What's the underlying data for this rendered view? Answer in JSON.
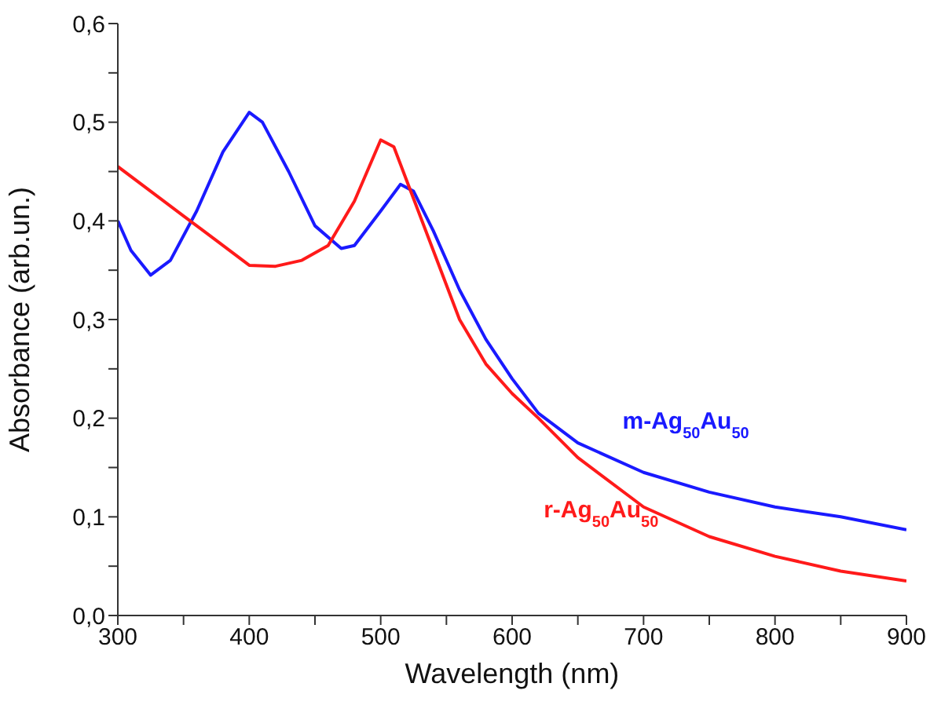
{
  "chart_data": {
    "type": "line",
    "xlabel": "Wavelength (nm)",
    "ylabel": "Absorbance (arb.un.)",
    "xlim": [
      300,
      900
    ],
    "ylim": [
      0,
      0.6
    ],
    "xticks": [
      300,
      {
        "value": 350,
        "label": null
      },
      400,
      {
        "value": 450,
        "label": null
      },
      500,
      {
        "value": 550,
        "label": null
      },
      600,
      {
        "value": 650,
        "label": null
      },
      700,
      {
        "value": 750,
        "label": null
      },
      800,
      {
        "value": 850,
        "label": null
      },
      900
    ],
    "yticks": [
      {
        "value": 0,
        "label": "0,0"
      },
      {
        "value": 0.05,
        "label": null
      },
      {
        "value": 0.1,
        "label": "0,1"
      },
      {
        "value": 0.15,
        "label": null
      },
      {
        "value": 0.2,
        "label": "0,2"
      },
      {
        "value": 0.25,
        "label": null
      },
      {
        "value": 0.3,
        "label": "0,3"
      },
      {
        "value": 0.35,
        "label": null
      },
      {
        "value": 0.4,
        "label": "0,4"
      },
      {
        "value": 0.45,
        "label": null
      },
      {
        "value": 0.5,
        "label": "0,5"
      },
      {
        "value": 0.55,
        "label": null
      },
      {
        "value": 0.6,
        "label": "0,6"
      }
    ],
    "grid": false,
    "legend": false,
    "marker": "none",
    "line_style": "solid",
    "series": [
      {
        "name": "m-Ag$_{50}$Au$_{50}$",
        "color": "#1a1aff",
        "x": [
          300,
          310,
          325,
          340,
          360,
          380,
          400,
          410,
          430,
          450,
          470,
          480,
          500,
          515,
          525,
          540,
          560,
          580,
          600,
          620,
          650,
          700,
          750,
          800,
          850,
          900
        ],
        "values": [
          0.4,
          0.37,
          0.345,
          0.36,
          0.41,
          0.47,
          0.51,
          0.5,
          0.45,
          0.395,
          0.372,
          0.375,
          0.41,
          0.437,
          0.43,
          0.39,
          0.33,
          0.28,
          0.24,
          0.205,
          0.175,
          0.145,
          0.125,
          0.11,
          0.1,
          0.087
        ]
      },
      {
        "name": "r-Ag$_{50}$Au$_{50}$",
        "color": "#ff1a1a",
        "x": [
          300,
          325,
          350,
          375,
          400,
          420,
          440,
          460,
          480,
          500,
          510,
          520,
          540,
          560,
          580,
          600,
          620,
          650,
          700,
          750,
          800,
          850,
          900
        ],
        "values": [
          0.455,
          0.43,
          0.405,
          0.38,
          0.355,
          0.354,
          0.36,
          0.375,
          0.42,
          0.482,
          0.475,
          0.44,
          0.37,
          0.3,
          0.255,
          0.225,
          0.2,
          0.16,
          0.11,
          0.08,
          0.06,
          0.045,
          0.035
        ]
      }
    ]
  }
}
